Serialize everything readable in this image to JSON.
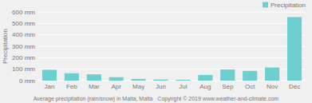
{
  "chart_data": {
    "type": "bar",
    "categories": [
      "Jan",
      "Feb",
      "Mar",
      "Apr",
      "May",
      "Jun",
      "Jul",
      "Aug",
      "Sep",
      "Oct",
      "Nov",
      "Dec"
    ],
    "series": [
      {
        "name": "Precipitation",
        "color": "#6dcfcf",
        "values": [
          95,
          65,
          55,
          30,
          15,
          10,
          8,
          50,
          98,
          85,
          115,
          555
        ]
      }
    ],
    "ylabel": "Precipitation",
    "xlabel": "Average precipitation (rain/snow) in Malta, Malta   Copyright © 2019 www.weather-and-climate.com",
    "ylim": [
      0,
      600
    ],
    "yticks": [
      {
        "value": 0,
        "label": "0 mm"
      },
      {
        "value": 100,
        "label": "100 mm"
      },
      {
        "value": 200,
        "label": "200 mm"
      },
      {
        "value": 300,
        "label": "300 mm"
      },
      {
        "value": 400,
        "label": "400 mm"
      },
      {
        "value": 500,
        "label": "500 mm"
      },
      {
        "value": 600,
        "label": "600 mm"
      }
    ],
    "grid": true,
    "legend": "upper right"
  }
}
